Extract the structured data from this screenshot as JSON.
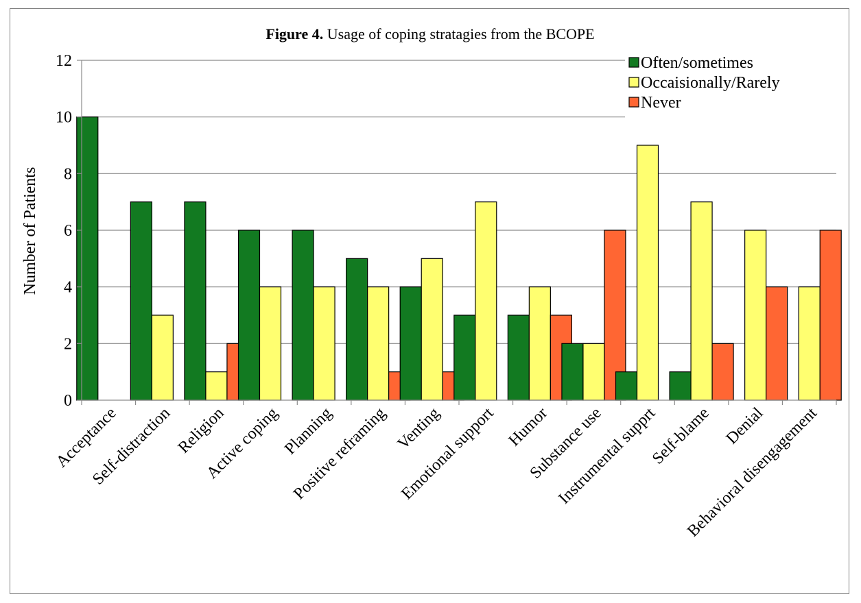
{
  "chart_data": {
    "type": "bar",
    "title_bold": "Figure 4.",
    "title_rest": " Usage of coping stratagies from the BCOPE",
    "xlabel": "",
    "ylabel": "Number of Patients",
    "ylim": [
      0,
      12
    ],
    "yticks": [
      "0",
      "2",
      "4",
      "6",
      "8",
      "10",
      "12"
    ],
    "grid": true,
    "legend_position": "top-right",
    "categories": [
      "Acceptance",
      "Self-distraction",
      "Religion",
      "Active coping",
      "Planning",
      "Positive reframing",
      "Venting",
      "Emotional support",
      "Humor",
      "Substance use",
      "Instrumental supprt",
      "Self-blame",
      "Denial",
      "Behavioral disengagement"
    ],
    "series": [
      {
        "name": "Often/sometimes",
        "color": "#127a21",
        "values": [
          10,
          7,
          7,
          6,
          6,
          5,
          4,
          3,
          3,
          2,
          1,
          1,
          0,
          0
        ]
      },
      {
        "name": "Occaisionally/Rarely",
        "color": "#ffff70",
        "values": [
          0,
          3,
          1,
          4,
          4,
          4,
          5,
          7,
          4,
          2,
          9,
          7,
          6,
          4
        ]
      },
      {
        "name": "Never",
        "color": "#ff6633",
        "values": [
          0,
          0,
          2,
          0,
          0,
          1,
          1,
          0,
          3,
          6,
          0,
          2,
          4,
          6
        ]
      }
    ]
  }
}
